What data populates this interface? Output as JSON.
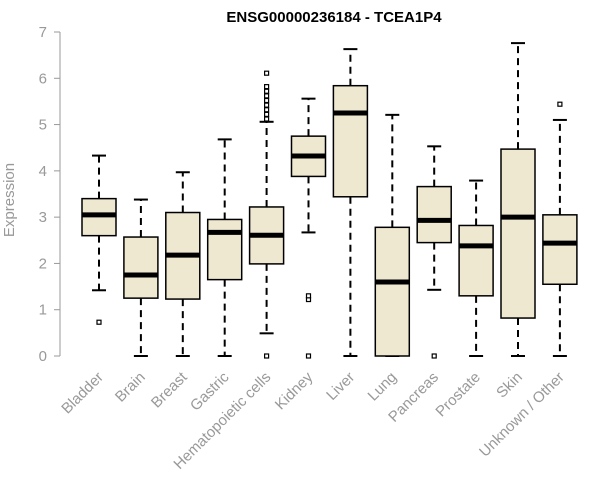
{
  "chart_data": {
    "type": "boxplot",
    "title": "ENSG00000236184 - TCEA1P4",
    "ylabel": "Expression",
    "xlabel": "",
    "ylim": [
      0,
      7
    ],
    "yticks": [
      0,
      1,
      2,
      3,
      4,
      5,
      6,
      7
    ],
    "colors": {
      "box_fill": "#efe8d0",
      "stroke": "#000000",
      "axis_text": "#999999",
      "axis_line": "#999999"
    },
    "categories": [
      "Bladder",
      "Brain",
      "Breast",
      "Gastric",
      "Hematopoietic cells",
      "Kidney",
      "Liver",
      "Lung",
      "Pancreas",
      "Prostate",
      "Skin",
      "Unknown / Other"
    ],
    "boxes": [
      {
        "category": "Bladder",
        "whisker_low": 1.42,
        "q1": 2.6,
        "median": 3.05,
        "q3": 3.4,
        "whisker_high": 4.33,
        "outliers": [
          0.73
        ]
      },
      {
        "category": "Brain",
        "whisker_low": 0.0,
        "q1": 1.25,
        "median": 1.75,
        "q3": 2.57,
        "whisker_high": 3.38,
        "outliers": []
      },
      {
        "category": "Breast",
        "whisker_low": 0.0,
        "q1": 1.23,
        "median": 2.18,
        "q3": 3.1,
        "whisker_high": 3.97,
        "outliers": []
      },
      {
        "category": "Gastric",
        "whisker_low": 0.0,
        "q1": 1.65,
        "median": 2.67,
        "q3": 2.95,
        "whisker_high": 4.68,
        "outliers": []
      },
      {
        "category": "Hematopoietic cells",
        "whisker_low": 0.49,
        "q1": 1.99,
        "median": 2.61,
        "q3": 3.22,
        "whisker_high": 5.06,
        "outliers": [
          0.0,
          5.12,
          5.22,
          5.32,
          5.42,
          5.52,
          5.62,
          5.72,
          5.82,
          6.11
        ]
      },
      {
        "category": "Kidney",
        "whisker_low": 2.67,
        "q1": 3.88,
        "median": 4.32,
        "q3": 4.75,
        "whisker_high": 5.56,
        "outliers": [
          0.0,
          1.22,
          1.3
        ]
      },
      {
        "category": "Liver",
        "whisker_low": 0.0,
        "q1": 3.44,
        "median": 5.25,
        "q3": 5.84,
        "whisker_high": 6.63,
        "outliers": []
      },
      {
        "category": "Lung",
        "whisker_low": 0.0,
        "q1": 0.0,
        "median": 1.6,
        "q3": 2.78,
        "whisker_high": 5.21,
        "outliers": []
      },
      {
        "category": "Pancreas",
        "whisker_low": 1.43,
        "q1": 2.45,
        "median": 2.93,
        "q3": 3.66,
        "whisker_high": 4.53,
        "outliers": [
          0.0
        ]
      },
      {
        "category": "Prostate",
        "whisker_low": 0.0,
        "q1": 1.3,
        "median": 2.38,
        "q3": 2.82,
        "whisker_high": 3.79,
        "outliers": []
      },
      {
        "category": "Skin",
        "whisker_low": 0.0,
        "q1": 0.82,
        "median": 3.0,
        "q3": 4.47,
        "whisker_high": 6.76,
        "outliers": []
      },
      {
        "category": "Unknown / Other",
        "whisker_low": 0.0,
        "q1": 1.55,
        "median": 2.44,
        "q3": 3.05,
        "whisker_high": 5.1,
        "outliers": [
          5.44
        ]
      }
    ]
  }
}
